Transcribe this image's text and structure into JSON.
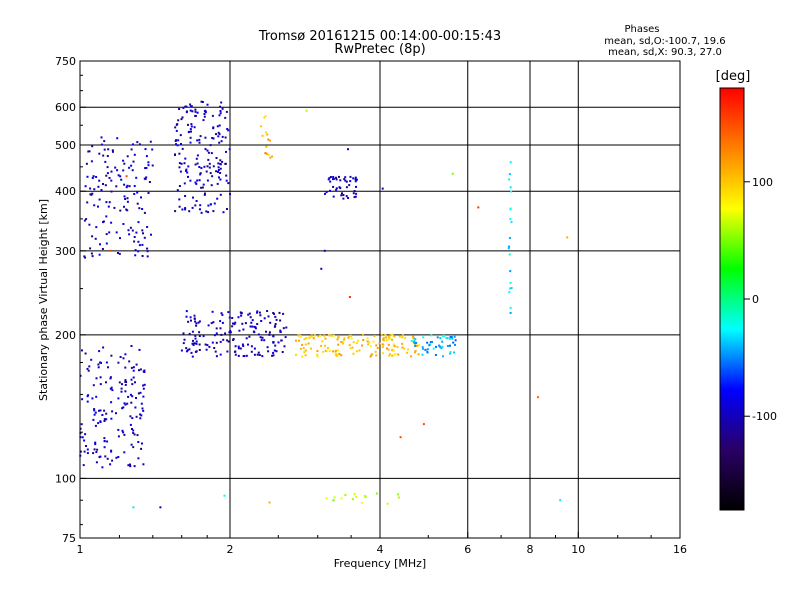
{
  "chart_data": {
    "type": "scatter",
    "title": "Tromsø 20161215 00:14:00-00:15:43",
    "subtitle": "RwPretec (8p)",
    "xlabel": "Frequency [MHz]",
    "ylabel": "Stationary phase Virtual Height [km]",
    "x_scale": "log2",
    "y_scale": "log",
    "xlim": [
      1,
      16
    ],
    "ylim": [
      75,
      750
    ],
    "x_ticks": [
      1,
      2,
      4,
      6,
      8,
      10,
      16
    ],
    "x_tick_labels": [
      "1",
      "2",
      "4",
      "6",
      "8",
      "10",
      "16"
    ],
    "y_ticks": [
      75,
      100,
      200,
      300,
      400,
      500,
      600,
      750
    ],
    "y_tick_labels": [
      "75",
      "100",
      "200",
      "300",
      "400",
      "500",
      "600",
      "750"
    ],
    "grid": true,
    "stats_heading": "Phases",
    "stats_lines": [
      "mean, sd,O:-100.7, 19.6",
      "mean, sd,X:  90.3, 27.0"
    ],
    "colorbar": {
      "label": "[deg]",
      "range": [
        -180,
        180
      ],
      "ticks": [
        100,
        0,
        -100
      ],
      "tick_labels": [
        "100",
        "0",
        "-100"
      ],
      "colors": [
        "#000000",
        "#2a0066",
        "#0000ff",
        "#00ffff",
        "#00ff00",
        "#ffff00",
        "#ff8000",
        "#ff0000"
      ]
    },
    "clusters": [
      {
        "name": "O-trace low (1.0-1.35 MHz)",
        "x": [
          1.0,
          1.35
        ],
        "y": [
          105,
          190
        ],
        "phase": -100,
        "count": 170
      },
      {
        "name": "O-trace F (1.0-1.4 MHz)",
        "x": [
          1.02,
          1.4
        ],
        "y": [
          290,
          520
        ],
        "phase": -100,
        "count": 150
      },
      {
        "name": "O-trace F (1.55-2.0 MHz)",
        "x": [
          1.55,
          2.0
        ],
        "y": [
          360,
          620
        ],
        "phase": -100,
        "count": 180
      },
      {
        "name": "O-trace 200 km (1.6-2.6 MHz)",
        "x": [
          1.6,
          2.6
        ],
        "y": [
          180,
          225
        ],
        "phase": -100,
        "count": 180
      },
      {
        "name": "trace 190 km (2.7-4.8 MHz)",
        "x": [
          2.7,
          4.8
        ],
        "y": [
          180,
          200
        ],
        "phase": 100,
        "count": 150
      },
      {
        "name": "trace 190 km (4.6-5.7 MHz)",
        "x": [
          4.6,
          5.7
        ],
        "y": [
          180,
          200
        ],
        "phase": -40,
        "count": 50
      },
      {
        "name": "O-trace 400 km (3.1-3.6 MHz)",
        "x": [
          3.1,
          3.6
        ],
        "y": [
          385,
          430
        ],
        "phase": -100,
        "count": 45
      },
      {
        "name": "scatter 7.3 MHz",
        "x": [
          7.25,
          7.35
        ],
        "y": [
          220,
          470
        ],
        "phase": -30,
        "count": 20
      },
      {
        "name": "trace 550 km (2.3-2.4 MHz)",
        "x": [
          2.3,
          2.45
        ],
        "y": [
          470,
          580
        ],
        "phase": 110,
        "count": 14
      },
      {
        "name": "low trace 90 km (3.0-4.6 MHz)",
        "x": [
          3.0,
          4.6
        ],
        "y": [
          88,
          93
        ],
        "phase": 60,
        "count": 15
      }
    ],
    "points": [
      {
        "x": 1.28,
        "y": 87,
        "phase": -30
      },
      {
        "x": 1.45,
        "y": 87,
        "phase": -100
      },
      {
        "x": 1.95,
        "y": 92,
        "phase": -20
      },
      {
        "x": 2.4,
        "y": 89,
        "phase": 110
      },
      {
        "x": 9.2,
        "y": 90,
        "phase": -30
      },
      {
        "x": 3.48,
        "y": 240,
        "phase": 160
      },
      {
        "x": 8.3,
        "y": 148,
        "phase": 140
      },
      {
        "x": 6.3,
        "y": 370,
        "phase": 160
      },
      {
        "x": 9.5,
        "y": 320,
        "phase": 110
      },
      {
        "x": 5.6,
        "y": 435,
        "phase": 50
      },
      {
        "x": 4.05,
        "y": 405,
        "phase": -100
      },
      {
        "x": 3.05,
        "y": 275,
        "phase": -100
      },
      {
        "x": 3.1,
        "y": 300,
        "phase": -100
      },
      {
        "x": 4.4,
        "y": 122,
        "phase": 150
      },
      {
        "x": 4.9,
        "y": 130,
        "phase": 150
      },
      {
        "x": 3.45,
        "y": 490,
        "phase": -100
      },
      {
        "x": 2.85,
        "y": 590,
        "phase": 60
      },
      {
        "x": 1.15,
        "y": 300,
        "phase": 150
      },
      {
        "x": 1.24,
        "y": 430,
        "phase": 150
      }
    ]
  }
}
